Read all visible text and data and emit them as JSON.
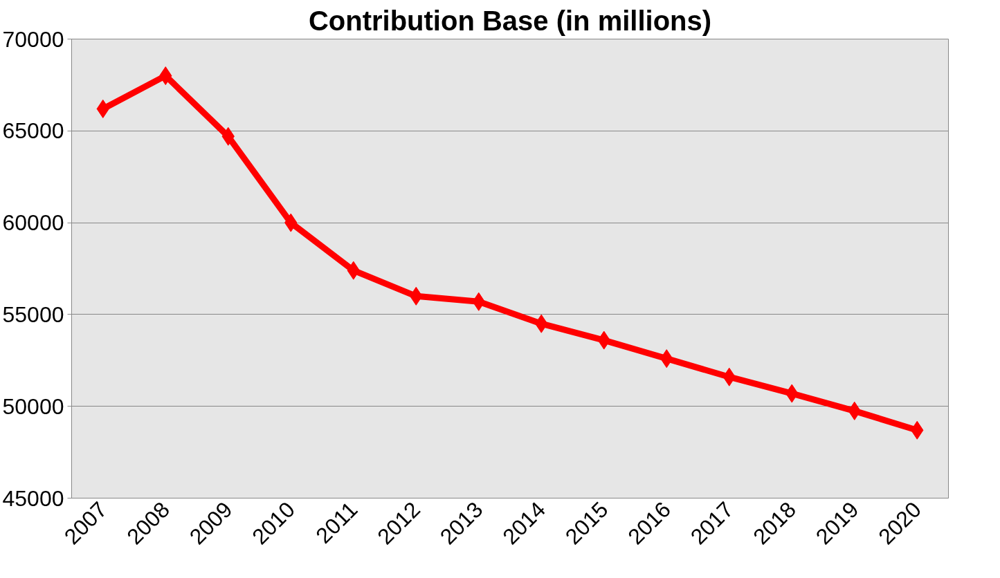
{
  "chart_data": {
    "type": "line",
    "title": "Contribution Base (in millions)",
    "categories": [
      "2007",
      "2008",
      "2009",
      "2010",
      "2011",
      "2012",
      "2013",
      "2014",
      "2015",
      "2016",
      "2017",
      "2018",
      "2019",
      "2020"
    ],
    "series": [
      {
        "color": "#ff0000",
        "values": [
          66200,
          68000,
          64700,
          60000,
          57400,
          56000,
          55700,
          54500,
          53600,
          52600,
          51600,
          50700,
          49750,
          48700
        ]
      }
    ],
    "ylim": [
      45000,
      70000
    ],
    "yticks": [
      45000,
      50000,
      55000,
      60000,
      65000,
      70000
    ],
    "grid": "y",
    "marker": "diamond",
    "line_style": "solid"
  }
}
